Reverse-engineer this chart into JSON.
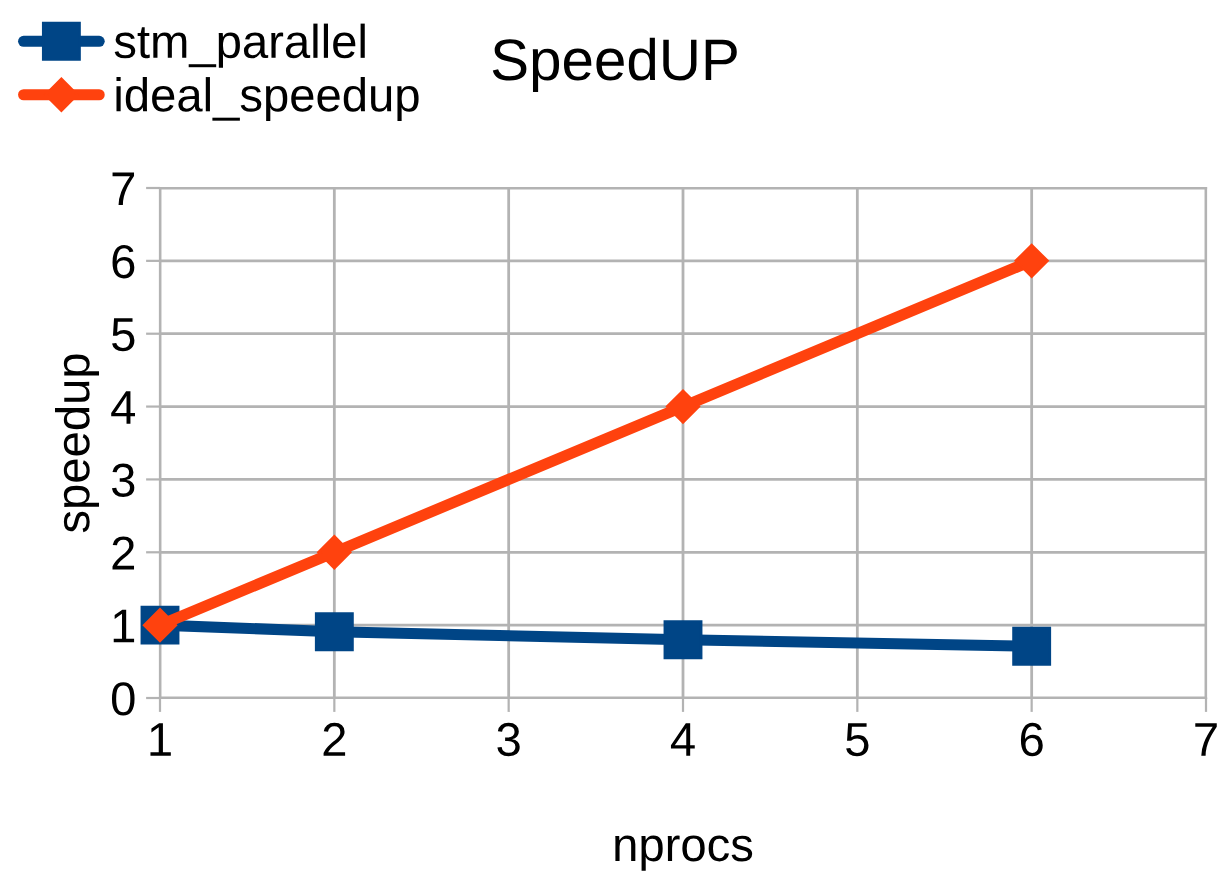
{
  "chart_data": {
    "type": "line",
    "title": "SpeedUP",
    "xlabel": "nprocs",
    "ylabel": "speedup",
    "series": [
      {
        "name": "stm_parallel",
        "color": "#004586",
        "marker": "square",
        "x": [
          1,
          2,
          4,
          6
        ],
        "values": [
          1.0,
          0.91,
          0.8,
          0.71
        ]
      },
      {
        "name": "ideal_speedup",
        "color": "#ff420e",
        "marker": "diamond",
        "x": [
          1,
          2,
          4,
          6
        ],
        "values": [
          1,
          2,
          4,
          6
        ]
      }
    ],
    "xlim": [
      1,
      7
    ],
    "xticks": [
      1,
      2,
      3,
      4,
      5,
      6,
      7
    ],
    "ylim": [
      0,
      7
    ],
    "yticks": [
      0,
      1,
      2,
      3,
      4,
      5,
      6,
      7
    ],
    "grid": true,
    "legend": "top left",
    "line_style": "solid"
  }
}
